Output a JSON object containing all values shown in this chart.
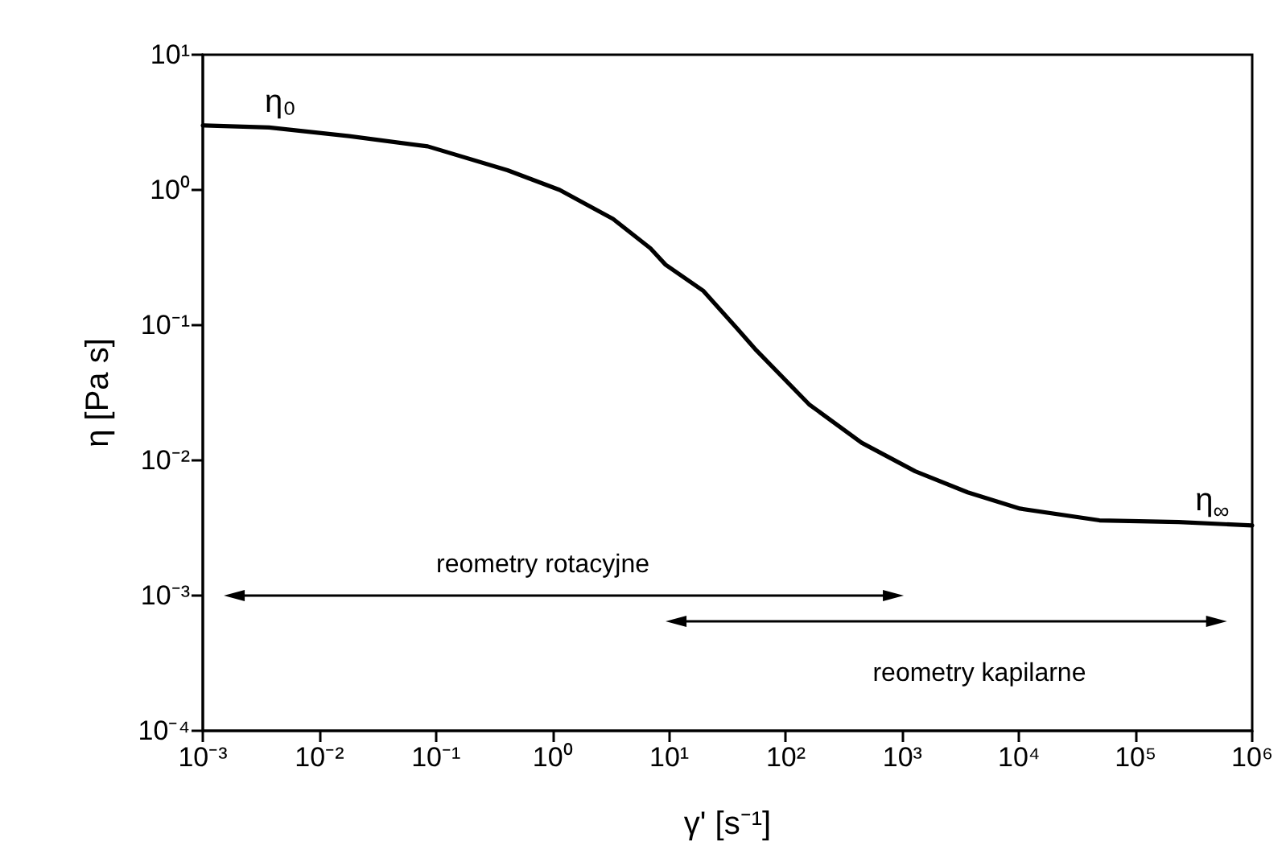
{
  "chart_data": {
    "type": "line",
    "xlabel": "γ' [s⁻¹]",
    "ylabel": "η [Pa s]",
    "log": "xy",
    "marker": "none",
    "line_style": "solid",
    "xlim": [
      0.001,
      1000000
    ],
    "ylim": [
      0.0001,
      10
    ],
    "xticks": [
      {
        "value": 0.001,
        "label": "10⁻³"
      },
      {
        "value": 0.01,
        "label": "10⁻²"
      },
      {
        "value": 0.1,
        "label": "10⁻¹"
      },
      {
        "value": 1,
        "label": "10⁰"
      },
      {
        "value": 10,
        "label": "10¹"
      },
      {
        "value": 100,
        "label": "10²"
      },
      {
        "value": 1000,
        "label": "10³"
      },
      {
        "value": 10000,
        "label": "10⁴"
      },
      {
        "value": 100000,
        "label": "10⁵"
      },
      {
        "value": 1000000,
        "label": "10⁶"
      }
    ],
    "yticks": [
      {
        "value": 0.0001,
        "label": "10⁻⁴"
      },
      {
        "value": 0.001,
        "label": "10⁻³"
      },
      {
        "value": 0.01,
        "label": "10⁻²"
      },
      {
        "value": 0.1,
        "label": "10⁻¹"
      },
      {
        "value": 1,
        "label": "10⁰"
      },
      {
        "value": 10,
        "label": "10¹"
      }
    ],
    "series": [
      {
        "color": "#000000",
        "x": [
          0.001,
          0.0037,
          0.018,
          0.085,
          0.41,
          1.15,
          3.3,
          6.9,
          9.3,
          19.5,
          38,
          56,
          158,
          447,
          1290,
          3630,
          10200,
          49000,
          234000,
          1000000
        ],
        "values": [
          3.0,
          2.9,
          2.5,
          2.1,
          1.4,
          1.0,
          0.61,
          0.37,
          0.28,
          0.18,
          0.095,
          0.065,
          0.026,
          0.0135,
          0.0083,
          0.0058,
          0.0044,
          0.0036,
          0.0035,
          0.0033
        ]
      }
    ],
    "annotations": [
      "η₀",
      "η$_{∞}$",
      "reometry rotacyjne",
      "reometry kapilarne"
    ]
  }
}
